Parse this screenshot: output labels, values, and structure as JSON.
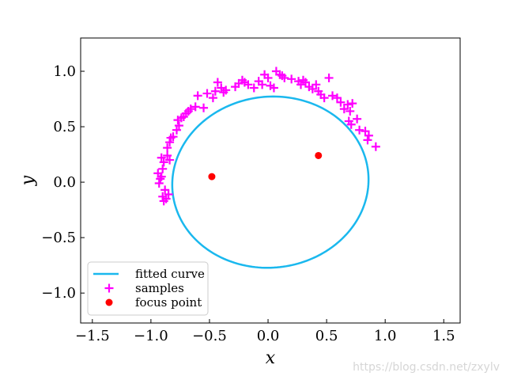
{
  "chart_data": {
    "type": "scatter",
    "title": "",
    "xlabel": "x",
    "ylabel": "y",
    "xlim": [
      -1.6,
      1.64
    ],
    "ylim": [
      -1.27,
      1.3
    ],
    "xticks": [
      -1.5,
      -1.0,
      -0.5,
      0.0,
      0.5,
      1.0,
      1.5
    ],
    "xtick_labels": [
      "−1.5",
      "−1.0",
      "−0.5",
      "0.0",
      "0.5",
      "1.0",
      "1.5"
    ],
    "yticks": [
      -1.0,
      -0.5,
      0.0,
      0.5,
      1.0
    ],
    "ytick_labels": [
      "−1.0",
      "−0.5",
      "0.0",
      "0.5",
      "1.0"
    ],
    "grid": false,
    "legend_position": "lower-left",
    "series": [
      {
        "name": "fitted curve",
        "kind": "ellipse",
        "color": "#1ab8ee",
        "center": [
          0.02,
          0.0
        ],
        "semi_major_axis": 0.84,
        "semi_minor_axis": 0.77,
        "rotation_deg": 10
      },
      {
        "name": "samples",
        "kind": "marker-plus",
        "color": "#ff00ff",
        "points": [
          [
            -0.94,
            0.08
          ],
          [
            -0.92,
            0.03
          ],
          [
            -0.9,
            0.12
          ],
          [
            -0.91,
            0.22
          ],
          [
            -0.89,
            0.18
          ],
          [
            -0.88,
            -0.07
          ],
          [
            -0.9,
            -0.13
          ],
          [
            -0.89,
            -0.17
          ],
          [
            -0.87,
            -0.15
          ],
          [
            -0.85,
            -0.11
          ],
          [
            -0.93,
            -0.01
          ],
          [
            -0.91,
            0.05
          ],
          [
            -0.86,
            0.24
          ],
          [
            -0.84,
            0.2
          ],
          [
            -0.86,
            0.31
          ],
          [
            -0.84,
            0.36
          ],
          [
            -0.83,
            0.4
          ],
          [
            -0.81,
            0.41
          ],
          [
            -0.78,
            0.47
          ],
          [
            -0.76,
            0.51
          ],
          [
            -0.77,
            0.56
          ],
          [
            -0.74,
            0.58
          ],
          [
            -0.72,
            0.59
          ],
          [
            -0.7,
            0.62
          ],
          [
            -0.68,
            0.64
          ],
          [
            -0.66,
            0.66
          ],
          [
            -0.62,
            0.68
          ],
          [
            -0.6,
            0.78
          ],
          [
            -0.55,
            0.67
          ],
          [
            -0.52,
            0.8
          ],
          [
            -0.47,
            0.76
          ],
          [
            -0.45,
            0.82
          ],
          [
            -0.43,
            0.9
          ],
          [
            -0.4,
            0.85
          ],
          [
            -0.38,
            0.81
          ],
          [
            -0.36,
            0.83
          ],
          [
            -0.28,
            0.86
          ],
          [
            -0.25,
            0.89
          ],
          [
            -0.22,
            0.92
          ],
          [
            -0.2,
            0.9
          ],
          [
            -0.17,
            0.88
          ],
          [
            -0.12,
            0.85
          ],
          [
            -0.08,
            0.91
          ],
          [
            -0.05,
            0.88
          ],
          [
            -0.03,
            0.97
          ],
          [
            0.0,
            0.94
          ],
          [
            0.02,
            0.87
          ],
          [
            0.05,
            0.85
          ],
          [
            0.07,
            1.0
          ],
          [
            0.1,
            0.97
          ],
          [
            0.12,
            0.96
          ],
          [
            0.14,
            0.94
          ],
          [
            0.2,
            0.93
          ],
          [
            0.26,
            0.91
          ],
          [
            0.28,
            0.88
          ],
          [
            0.3,
            0.92
          ],
          [
            0.32,
            0.9
          ],
          [
            0.35,
            0.86
          ],
          [
            0.38,
            0.84
          ],
          [
            0.41,
            0.88
          ],
          [
            0.43,
            0.82
          ],
          [
            0.45,
            0.79
          ],
          [
            0.48,
            0.76
          ],
          [
            0.52,
            0.94
          ],
          [
            0.55,
            0.78
          ],
          [
            0.59,
            0.76
          ],
          [
            0.62,
            0.72
          ],
          [
            0.65,
            0.66
          ],
          [
            0.68,
            0.7
          ],
          [
            0.7,
            0.64
          ],
          [
            0.72,
            0.71
          ],
          [
            0.69,
            0.55
          ],
          [
            0.71,
            0.52
          ],
          [
            0.76,
            0.57
          ],
          [
            0.78,
            0.47
          ],
          [
            0.83,
            0.46
          ],
          [
            0.86,
            0.42
          ],
          [
            0.85,
            0.38
          ],
          [
            0.92,
            0.32
          ]
        ]
      },
      {
        "name": "focus point",
        "kind": "marker-dot",
        "color": "#ff0000",
        "points": [
          [
            -0.48,
            0.05
          ],
          [
            0.43,
            0.24
          ]
        ]
      }
    ]
  },
  "watermark": "https://blog.csdn.net/zxylv"
}
